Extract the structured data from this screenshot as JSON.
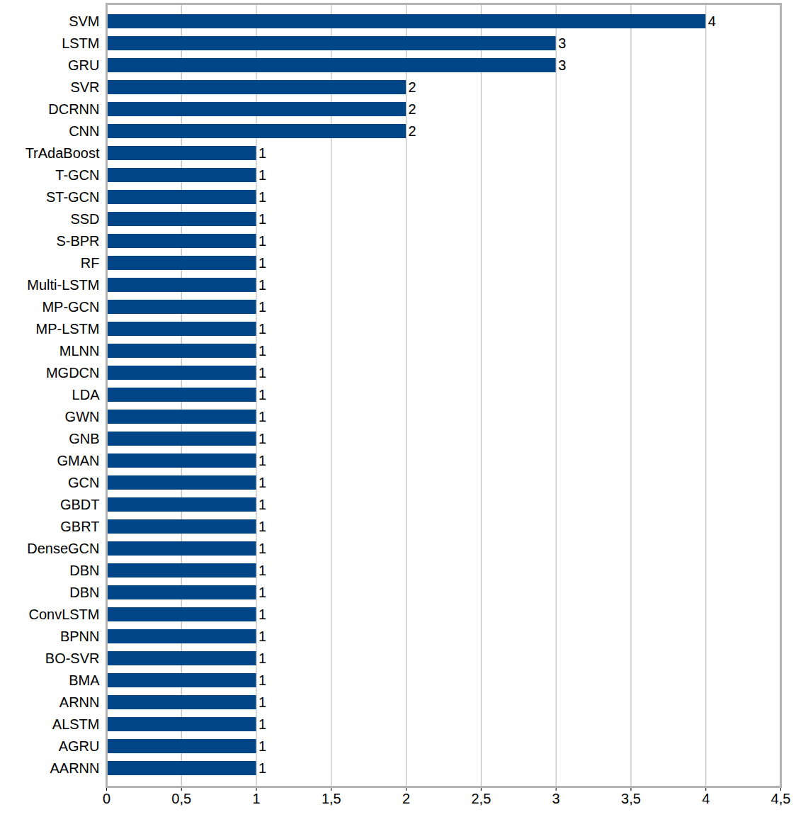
{
  "chart_data": {
    "type": "bar",
    "orientation": "horizontal",
    "categories": [
      "SVM",
      "LSTM",
      "GRU",
      "SVR",
      "DCRNN",
      "CNN",
      "TrAdaBoost",
      "T-GCN",
      "ST-GCN",
      "SSD",
      "S-BPR",
      "RF",
      "Multi-LSTM",
      "MP-GCN",
      "MP-LSTM",
      "MLNN",
      "MGDCN",
      "LDA",
      "GWN",
      "GNB",
      "GMAN",
      "GCN",
      "GBDT",
      "GBRT",
      "DenseGCN",
      "DBN",
      "DBN",
      "ConvLSTM",
      "BPNN",
      "BO-SVR",
      "BMA",
      "ARNN",
      "ALSTM",
      "AGRU",
      "AARNN"
    ],
    "values": [
      4,
      3,
      3,
      2,
      2,
      2,
      1,
      1,
      1,
      1,
      1,
      1,
      1,
      1,
      1,
      1,
      1,
      1,
      1,
      1,
      1,
      1,
      1,
      1,
      1,
      1,
      1,
      1,
      1,
      1,
      1,
      1,
      1,
      1,
      1
    ],
    "color": "#004586",
    "xlim": [
      0,
      4.5
    ],
    "xticks": [
      0,
      {
        "value": 0.5,
        "label": "0,5"
      },
      1,
      {
        "value": 1.5,
        "label": "1,5"
      },
      2,
      {
        "value": 2.5,
        "label": "2,5"
      },
      3,
      {
        "value": 3.5,
        "label": "3,5"
      },
      4,
      {
        "value": 4.5,
        "label": "4,5"
      }
    ],
    "grid": true,
    "data_labels": true
  }
}
